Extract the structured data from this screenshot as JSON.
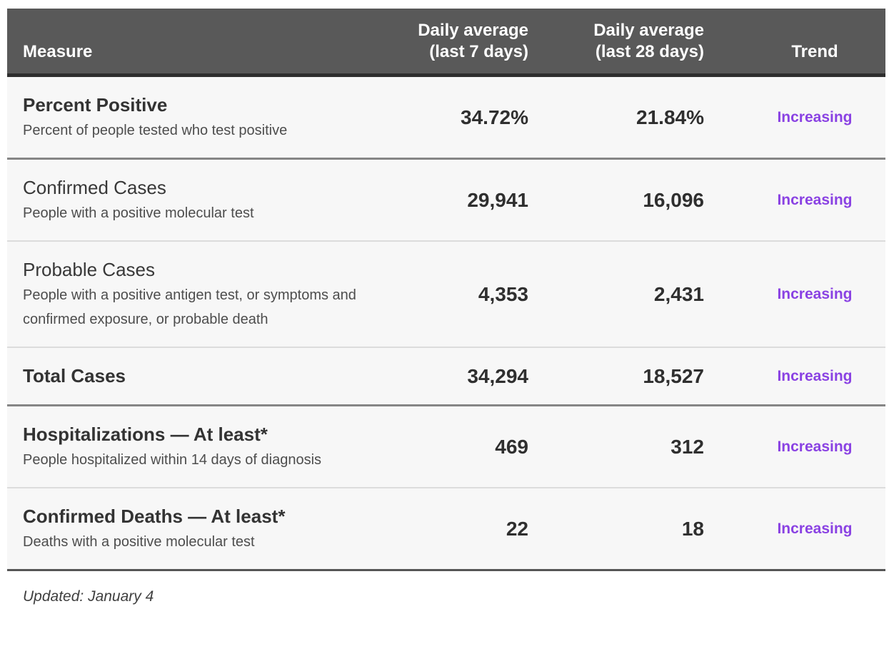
{
  "colors": {
    "accent_purple": "#8a42e3",
    "header_bg": "#595959",
    "row_bg": "#f7f7f7"
  },
  "table": {
    "columns": {
      "measure": {
        "label": "Measure"
      },
      "avg7": {
        "line1": "Daily average",
        "line2": "(last 7 days)"
      },
      "avg28": {
        "line1": "Daily average",
        "line2": "(last 28 days)"
      },
      "trend": {
        "label": "Trend"
      }
    },
    "rows": [
      {
        "measure": "Percent Positive",
        "description": "Percent of people tested who test positive",
        "avg7": "34.72%",
        "avg28": "21.84%",
        "trend": "Increasing"
      },
      {
        "measure": "Confirmed Cases",
        "description": "People with a positive molecular test",
        "avg7": "29,941",
        "avg28": "16,096",
        "trend": "Increasing"
      },
      {
        "measure": "Probable Cases",
        "description": "People with a positive antigen test, or symptoms and confirmed exposure, or probable death",
        "avg7": "4,353",
        "avg28": "2,431",
        "trend": "Increasing"
      },
      {
        "measure": "Total Cases",
        "description": "",
        "avg7": "34,294",
        "avg28": "18,527",
        "trend": "Increasing"
      },
      {
        "measure": "Hospitalizations — At least*",
        "description": "People hospitalized within 14 days of diagnosis",
        "avg7": "469",
        "avg28": "312",
        "trend": "Increasing"
      },
      {
        "measure": "Confirmed Deaths — At least*",
        "description": "Deaths with a positive molecular test",
        "avg7": "22",
        "avg28": "18",
        "trend": "Increasing"
      }
    ]
  },
  "footer": {
    "updated": "Updated: January 4"
  }
}
